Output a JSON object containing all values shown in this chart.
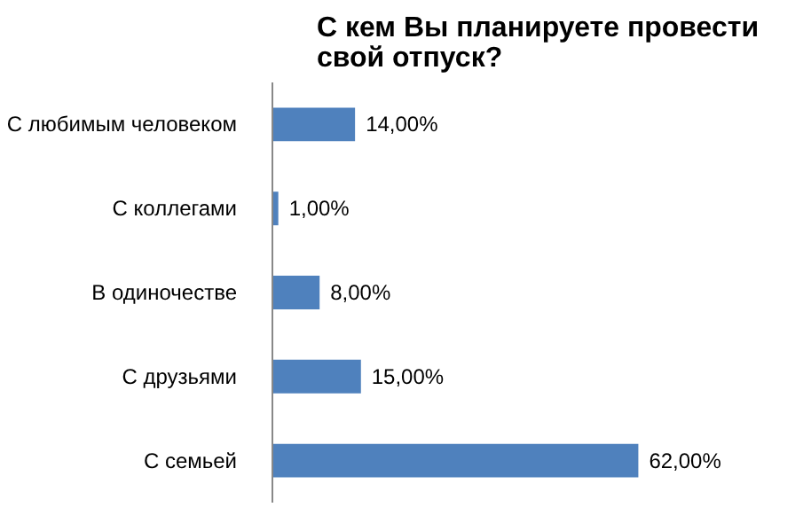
{
  "chart_data": {
    "type": "bar",
    "orientation": "horizontal",
    "title": "С кем Вы планируете провести\nсвой отпуск?",
    "categories": [
      "С любимым человеком",
      "С коллегами",
      "В одиночестве",
      "С друзьями",
      "С семьей"
    ],
    "values": [
      14,
      1,
      8,
      15,
      62
    ],
    "value_labels": [
      "14,00%",
      "1,00%",
      "8,00%",
      "15,00%",
      "62,00%"
    ],
    "color": "#4f81bd",
    "grid": false
  }
}
